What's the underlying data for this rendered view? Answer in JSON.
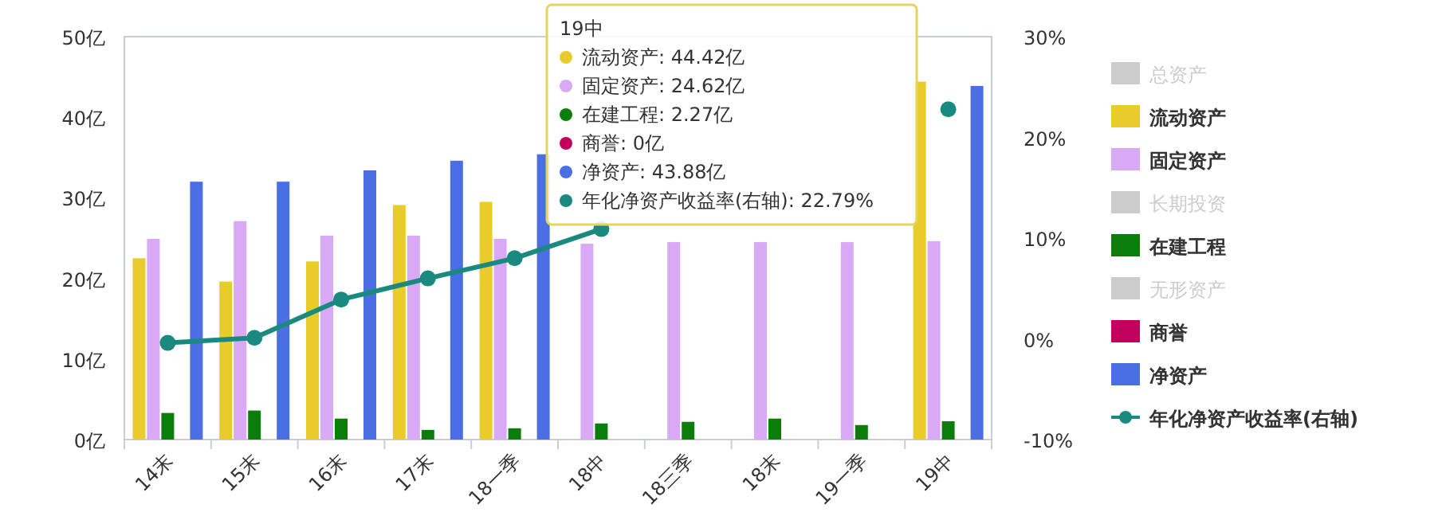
{
  "chart_data": {
    "type": "bar",
    "categories": [
      "14末",
      "15末",
      "16末",
      "17末",
      "18一季",
      "18中",
      "18三季",
      "18末",
      "19一季",
      "19中"
    ],
    "series": [
      {
        "name": "总资产",
        "color": "#cccccc",
        "values": [
          null,
          null,
          null,
          null,
          null,
          null,
          null,
          null,
          null,
          null
        ]
      },
      {
        "name": "流动资产",
        "color": "#e8cc2a",
        "values": [
          22.5,
          19.6,
          22.1,
          29.1,
          29.5,
          null,
          null,
          null,
          null,
          44.42
        ]
      },
      {
        "name": "固定资产",
        "color": "#d9a9f5",
        "values": [
          24.9,
          27.1,
          25.3,
          25.3,
          24.9,
          24.3,
          24.5,
          24.5,
          24.5,
          24.62
        ]
      },
      {
        "name": "长期投资",
        "color": "#cccccc",
        "values": [
          null,
          null,
          null,
          null,
          null,
          null,
          null,
          null,
          null,
          null
        ]
      },
      {
        "name": "在建工程",
        "color": "#0a7d0a",
        "values": [
          3.3,
          3.6,
          2.6,
          1.2,
          1.4,
          2.0,
          2.2,
          2.6,
          1.8,
          2.27
        ]
      },
      {
        "name": "无形资产",
        "color": "#cccccc",
        "values": [
          null,
          null,
          null,
          null,
          null,
          null,
          null,
          null,
          null,
          null
        ]
      },
      {
        "name": "商誉",
        "color": "#c4005e",
        "values": [
          0,
          0,
          0,
          0,
          0,
          0,
          0,
          0,
          0,
          0
        ]
      },
      {
        "name": "净资产",
        "color": "#4a6fe3",
        "values": [
          32.0,
          32.0,
          33.4,
          34.6,
          35.4,
          null,
          null,
          null,
          null,
          43.88
        ]
      },
      {
        "name": "年化净资产收益率(右轴)",
        "type": "line",
        "axis": "y2",
        "color": "#1a8a80",
        "values": [
          -0.4,
          0.1,
          3.9,
          6.0,
          8.0,
          10.9,
          null,
          null,
          null,
          22.79
        ]
      }
    ],
    "ylim": [
      0,
      50
    ],
    "yticks": [
      {
        "value": 0,
        "label": "0亿"
      },
      {
        "value": 10,
        "label": "10亿"
      },
      {
        "value": 20,
        "label": "20亿"
      },
      {
        "value": 30,
        "label": "30亿"
      },
      {
        "value": 40,
        "label": "40亿"
      },
      {
        "value": 50,
        "label": "50亿"
      }
    ],
    "y2lim": [
      -10,
      30
    ],
    "y2ticks": [
      {
        "value": -10,
        "label": "-10%"
      },
      {
        "value": 0,
        "label": "0%"
      },
      {
        "value": 10,
        "label": "10%"
      },
      {
        "value": 20,
        "label": "20%"
      },
      {
        "value": 30,
        "label": "30%"
      }
    ],
    "marker": "circle",
    "legend": "right",
    "grid": false,
    "annotations": [
      "19中",
      "流动资产: 44.42亿",
      "固定资产: 24.62亿",
      "在建工程: 2.27亿",
      "商誉: 0亿",
      "净资产: 43.88亿",
      "年化净资产收益率(右轴): 22.79%"
    ]
  }
}
